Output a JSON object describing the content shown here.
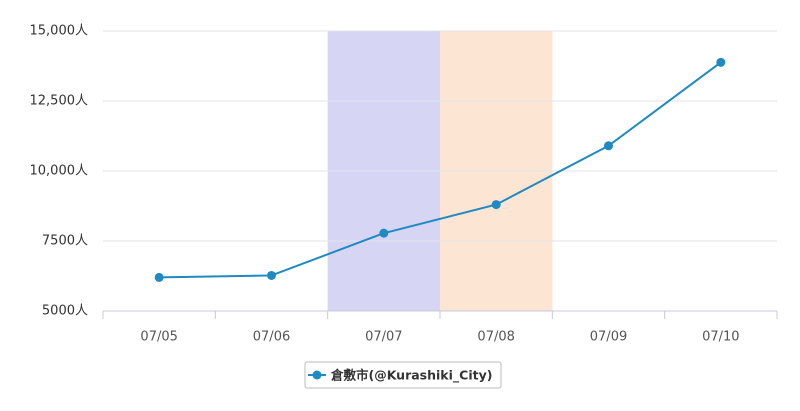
{
  "chart_data": {
    "type": "line",
    "categories": [
      "07/05",
      "07/06",
      "07/07",
      "07/08",
      "07/09",
      "07/10"
    ],
    "series": [
      {
        "name": "倉敷市(@Kurashiki_City)",
        "color": "#1f8ac2",
        "values": [
          6200,
          6270,
          7780,
          8800,
          10900,
          13880
        ]
      }
    ],
    "ylim": [
      5000,
      15000
    ],
    "yticks": [
      {
        "value": 5000,
        "label": "5000人"
      },
      {
        "value": 7500,
        "label": "7500人"
      },
      {
        "value": 10000,
        "label": "10,000人"
      },
      {
        "value": 12500,
        "label": "12,500人"
      },
      {
        "value": 15000,
        "label": "15,000人"
      }
    ],
    "grid": true,
    "highlight": [
      {
        "category": "07/07",
        "color": "#d6d6f4"
      },
      {
        "category": "07/08",
        "color": "#fde5d3"
      }
    ]
  }
}
